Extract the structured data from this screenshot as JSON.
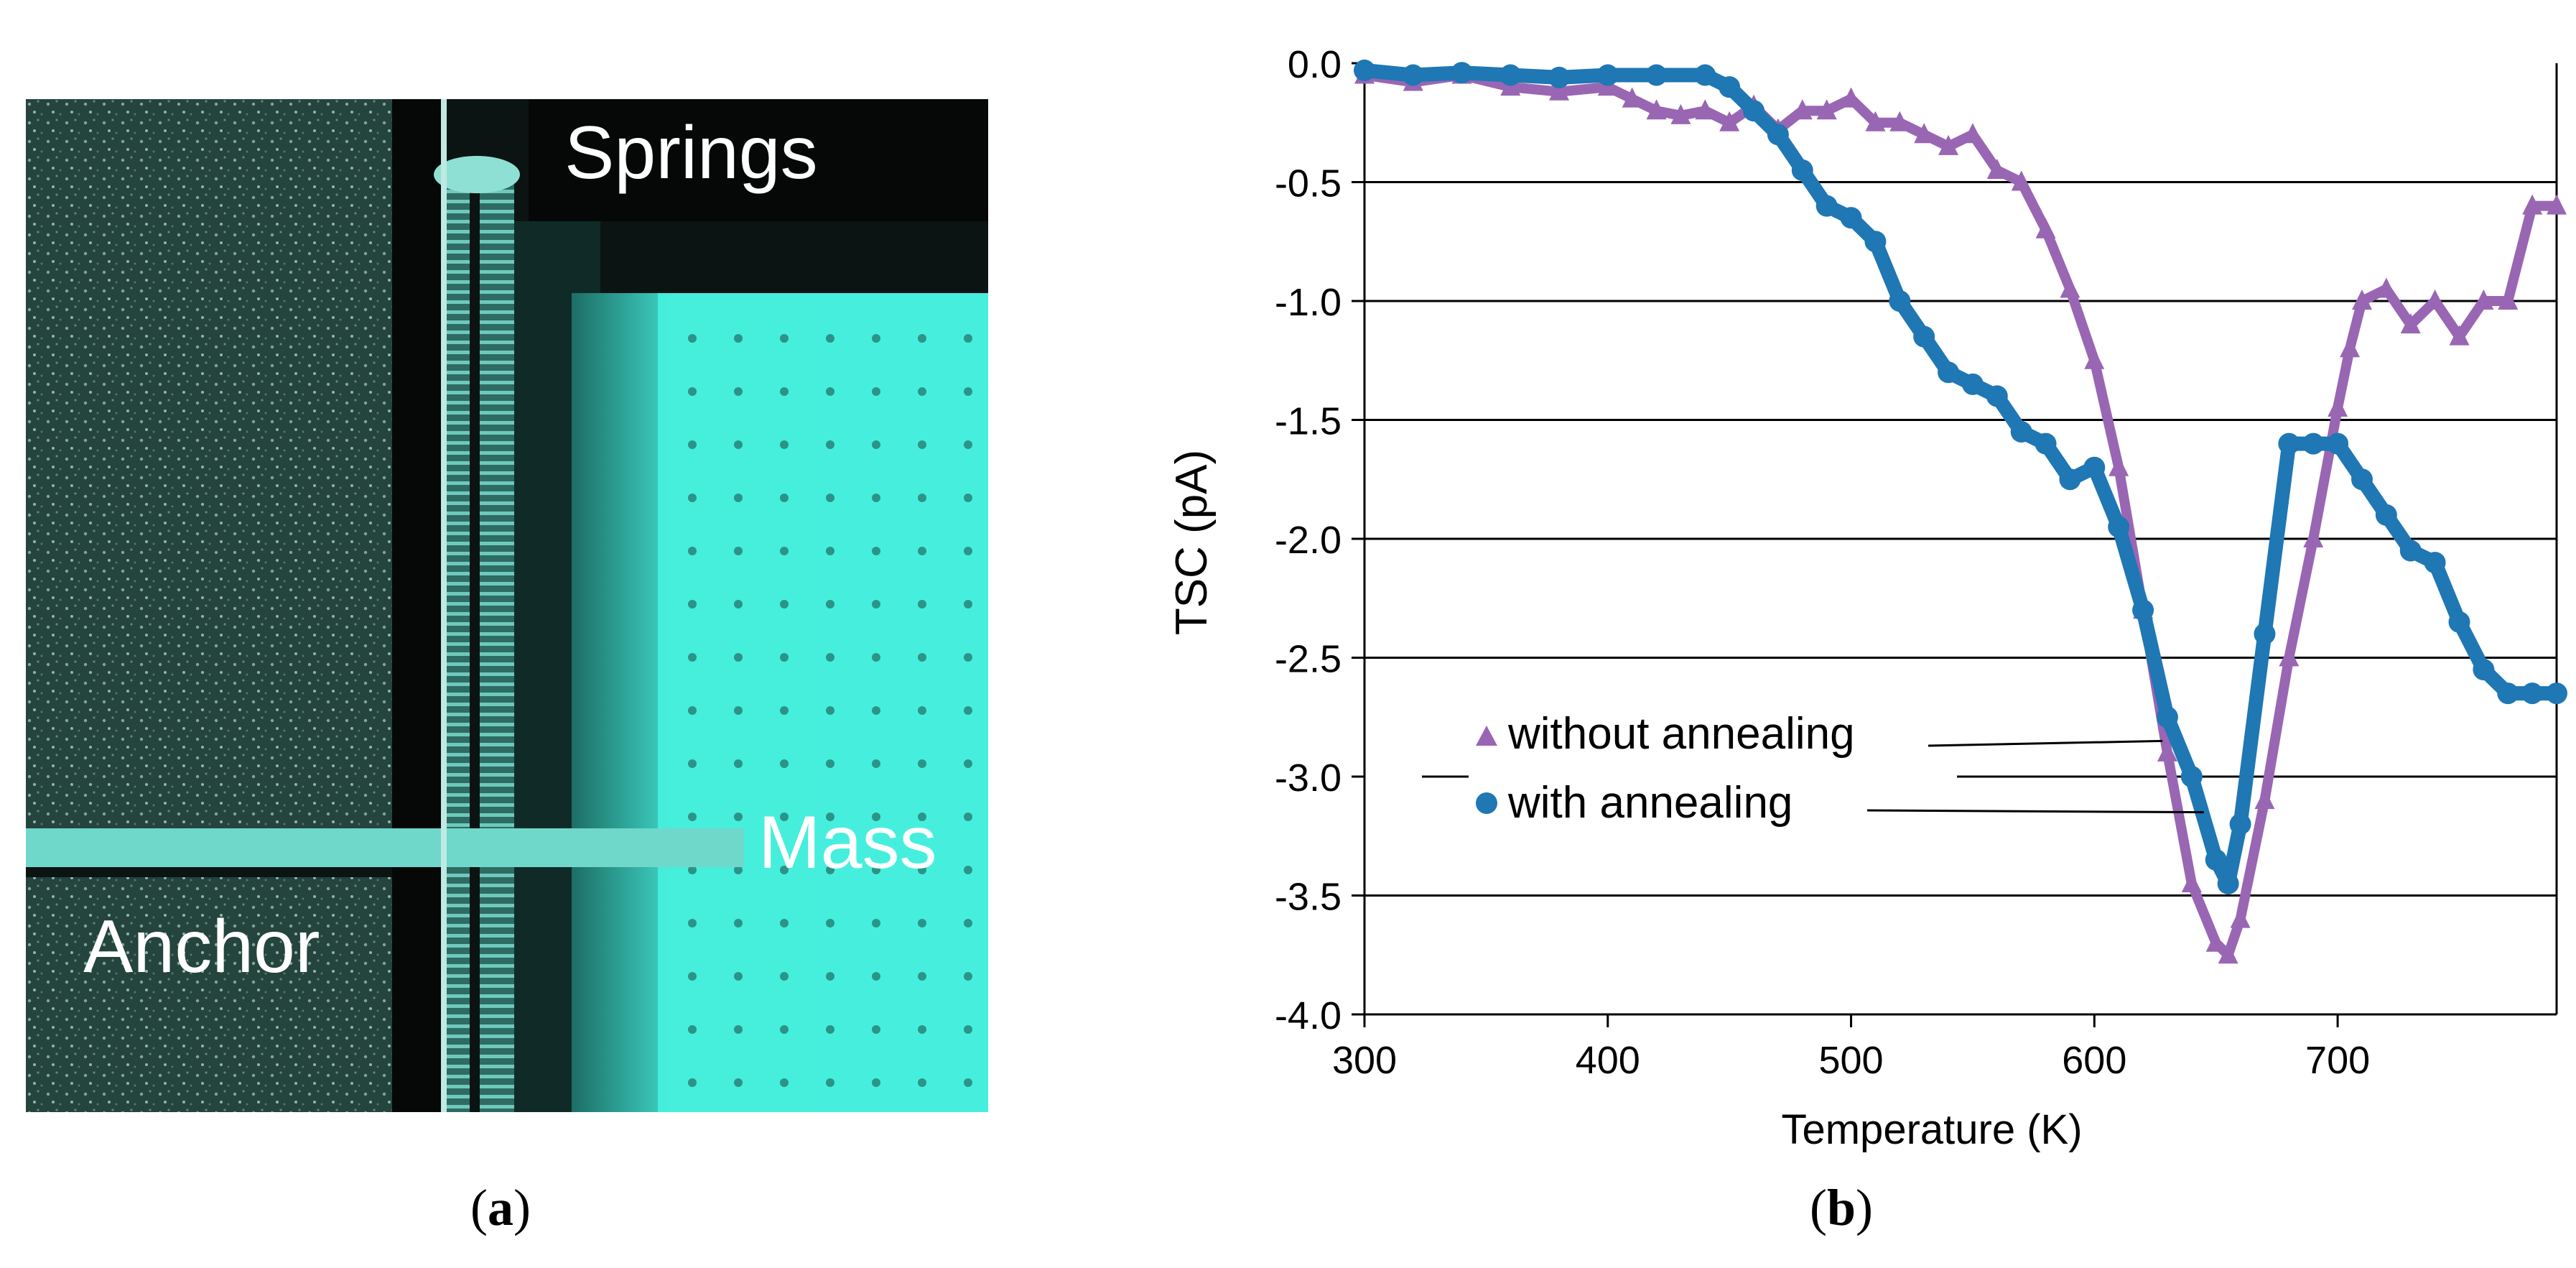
{
  "panel_a": {
    "label_open": "(",
    "label_letter": "a",
    "label_close": ")",
    "image_labels": {
      "springs": "Springs",
      "mass": "Mass",
      "anchor": "Anchor"
    },
    "colors": {
      "dark_bg": "#1f3f38",
      "cyan": "#3fe8d8",
      "black": "#050807"
    }
  },
  "panel_b": {
    "label_open": "(",
    "label_letter": "b",
    "label_close": ")"
  },
  "chart_data": {
    "type": "scatter",
    "title": "",
    "xlabel": "Temperature (K)",
    "ylabel": "TSC (pA)",
    "xlim": [
      300,
      790
    ],
    "ylim": [
      -4.0,
      0.0
    ],
    "xticks": [
      300,
      400,
      500,
      600,
      700
    ],
    "xtick_labels": [
      "300",
      "400",
      "500",
      "600",
      "700"
    ],
    "yticks": [
      0.0,
      -0.5,
      -1.0,
      -1.5,
      -2.0,
      -2.5,
      -3.0,
      -3.5,
      -4.0
    ],
    "ytick_labels": [
      "0.0",
      "-0.5",
      "-1.0",
      "-1.5",
      "-2.0",
      "-2.5",
      "-3.0",
      "-3.5",
      "-4.0"
    ],
    "grid": "horizontal",
    "legend_position": "lower-left",
    "series": [
      {
        "name": "without annealing",
        "marker": "triangle",
        "color": "#9966b3",
        "x": [
          300,
          320,
          340,
          360,
          380,
          400,
          410,
          420,
          430,
          440,
          450,
          460,
          470,
          480,
          490,
          500,
          510,
          520,
          530,
          540,
          550,
          560,
          570,
          580,
          590,
          600,
          610,
          620,
          630,
          640,
          650,
          655,
          660,
          670,
          680,
          690,
          700,
          705,
          710,
          720,
          730,
          740,
          750,
          760,
          770,
          780,
          790
        ],
        "y": [
          -0.05,
          -0.08,
          -0.05,
          -0.1,
          -0.12,
          -0.1,
          -0.15,
          -0.2,
          -0.22,
          -0.2,
          -0.25,
          -0.18,
          -0.28,
          -0.2,
          -0.2,
          -0.15,
          -0.25,
          -0.25,
          -0.3,
          -0.35,
          -0.3,
          -0.45,
          -0.5,
          -0.7,
          -0.95,
          -1.25,
          -1.7,
          -2.3,
          -2.9,
          -3.45,
          -3.7,
          -3.75,
          -3.6,
          -3.1,
          -2.5,
          -2.0,
          -1.45,
          -1.2,
          -1.0,
          -0.95,
          -1.1,
          -1.0,
          -1.15,
          -1.0,
          -1.0,
          -0.6,
          -0.6
        ]
      },
      {
        "name": "with annealing",
        "marker": "circle",
        "color": "#1f77b4",
        "x": [
          300,
          320,
          340,
          360,
          380,
          400,
          420,
          440,
          450,
          460,
          470,
          480,
          490,
          500,
          510,
          520,
          530,
          540,
          550,
          560,
          570,
          580,
          590,
          600,
          610,
          620,
          630,
          640,
          650,
          655,
          660,
          670,
          680,
          690,
          700,
          710,
          720,
          730,
          740,
          750,
          760,
          770,
          780,
          790
        ],
        "y": [
          -0.03,
          -0.05,
          -0.04,
          -0.05,
          -0.06,
          -0.05,
          -0.05,
          -0.05,
          -0.1,
          -0.2,
          -0.3,
          -0.45,
          -0.6,
          -0.65,
          -0.75,
          -1.0,
          -1.15,
          -1.3,
          -1.35,
          -1.4,
          -1.55,
          -1.6,
          -1.75,
          -1.7,
          -1.95,
          -2.3,
          -2.75,
          -3.0,
          -3.35,
          -3.45,
          -3.2,
          -2.4,
          -1.6,
          -1.6,
          -1.6,
          -1.75,
          -1.9,
          -2.05,
          -2.1,
          -2.35,
          -2.55,
          -2.65,
          -2.65,
          -2.65
        ]
      }
    ]
  }
}
